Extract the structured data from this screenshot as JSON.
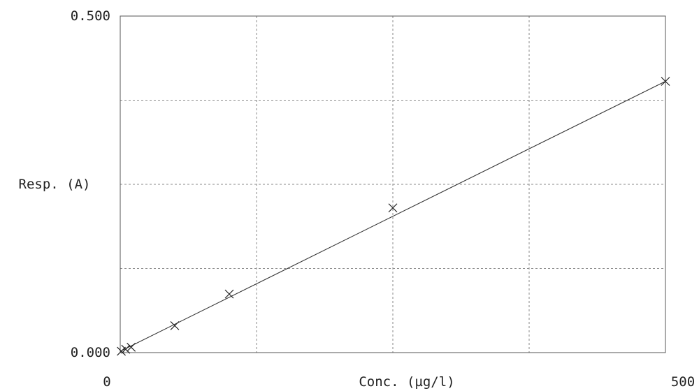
{
  "chart_data": {
    "type": "scatter",
    "title": "",
    "xlabel": "Conc. (µg/l)",
    "ylabel": "Resp. (A)",
    "xlim": [
      0,
      500
    ],
    "ylim": [
      0,
      0.5
    ],
    "x_tick_labels": {
      "min": "0",
      "max": "500"
    },
    "y_tick_labels": {
      "min": "0.000",
      "max": "0.500"
    },
    "x_grid": [
      125,
      250,
      375
    ],
    "y_grid": [
      0.125,
      0.25,
      0.375
    ],
    "grid": true,
    "grid_style": "dashed",
    "marker": "x",
    "series": [
      {
        "x": [
          1,
          5,
          10,
          50,
          100,
          250,
          500
        ],
        "y": [
          0.002,
          0.005,
          0.008,
          0.04,
          0.087,
          0.215,
          0.403
        ]
      }
    ],
    "fit_line": {
      "x": [
        0,
        500
      ],
      "y": [
        0.002,
        0.403
      ]
    }
  }
}
